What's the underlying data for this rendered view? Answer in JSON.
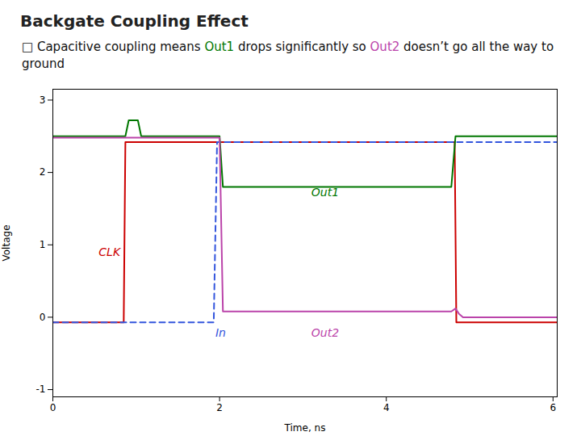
{
  "chart_data": {
    "type": "line",
    "title": "Backgate Coupling Effect",
    "subtitle": "□ Capacitive coupling means Out1 drops significantly so Out2 doesn’t go all the way to ground",
    "xlabel": "Time, ns",
    "ylabel": "Voltage",
    "xlim": [
      0,
      6.05
    ],
    "ylim": [
      -1.1,
      3.15
    ],
    "xticks": [
      0,
      2,
      4,
      6
    ],
    "yticks": [
      -1,
      0,
      1,
      2,
      3
    ],
    "grid": false,
    "series": [
      {
        "name": "CLK",
        "color": "#CC0000",
        "line_style": "solid",
        "x": [
          0,
          0.85,
          0.87,
          4.82,
          4.84,
          6.05
        ],
        "values": [
          -0.07,
          -0.07,
          2.42,
          2.42,
          -0.07,
          -0.07
        ]
      },
      {
        "name": "In",
        "color": "#3355DD",
        "line_style": "dashed",
        "x": [
          0,
          1.93,
          1.97,
          6.05
        ],
        "values": [
          -0.07,
          -0.07,
          2.42,
          2.42
        ]
      },
      {
        "name": "Out1",
        "color": "#007700",
        "line_style": "solid",
        "x": [
          0,
          0.87,
          0.91,
          1.02,
          1.06,
          2.0,
          2.04,
          4.78,
          4.83,
          6.05
        ],
        "values": [
          2.5,
          2.5,
          2.72,
          2.72,
          2.5,
          2.5,
          1.8,
          1.8,
          2.5,
          2.5
        ]
      },
      {
        "name": "Out2",
        "color": "#BB44AA",
        "line_style": "solid",
        "x": [
          0,
          2.0,
          2.04,
          4.78,
          4.83,
          4.87,
          4.92,
          6.05
        ],
        "values": [
          2.48,
          2.48,
          0.08,
          0.08,
          0.12,
          0.05,
          0.0,
          0.0
        ]
      }
    ],
    "annotations": [
      {
        "text": "CLK",
        "x": 0.55,
        "y": 0.9
      },
      {
        "text": "In",
        "x": 1.95,
        "y": -0.22
      },
      {
        "text": "Out1",
        "x": 3.1,
        "y": 1.72
      },
      {
        "text": "Out2",
        "x": 3.1,
        "y": -0.22
      }
    ]
  }
}
